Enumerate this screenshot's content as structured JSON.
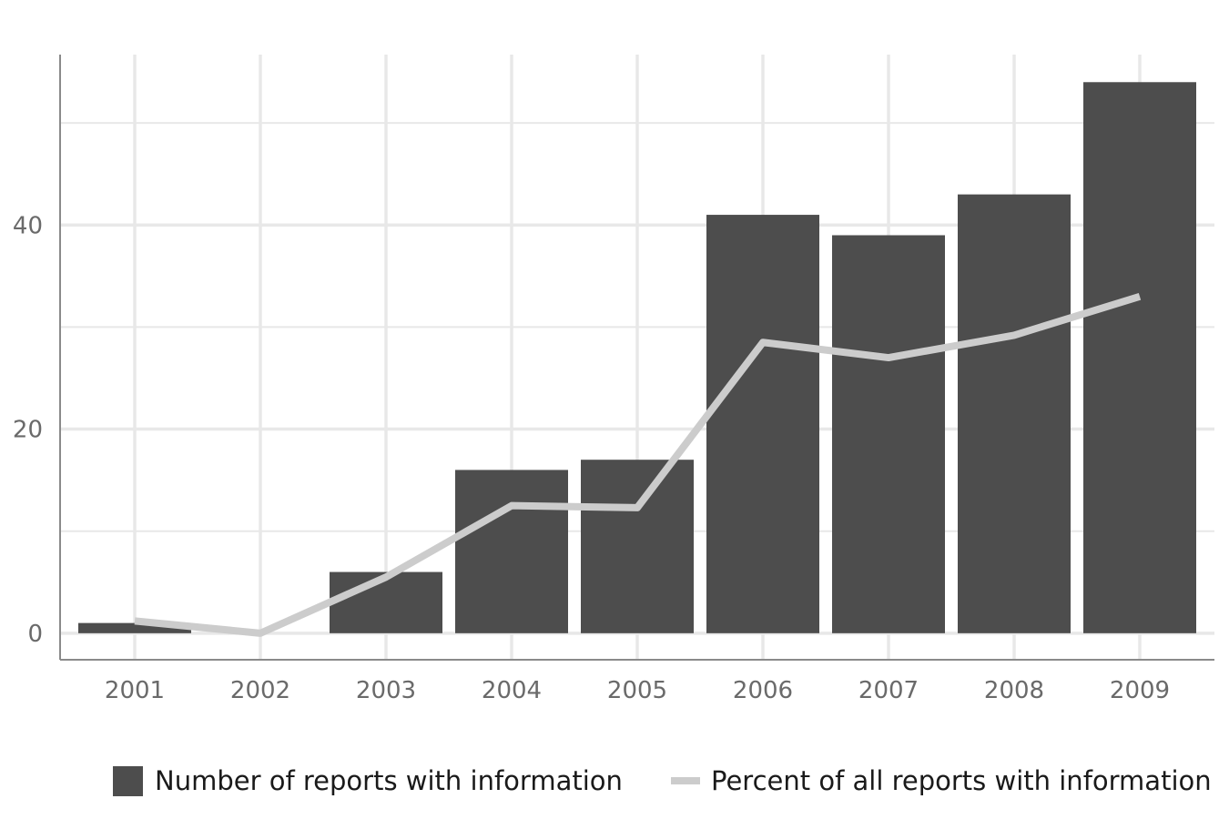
{
  "chart_data": {
    "type": "bar",
    "categories": [
      "2001",
      "2002",
      "2003",
      "2004",
      "2005",
      "2006",
      "2007",
      "2008",
      "2009"
    ],
    "series": [
      {
        "name": "Number of reports with information",
        "type": "bar",
        "values": [
          1,
          0,
          6,
          16,
          17,
          41,
          39,
          43,
          54
        ]
      },
      {
        "name": "Percent of all reports with information",
        "type": "line",
        "values": [
          1.2,
          0,
          5.5,
          12.5,
          12.3,
          28.5,
          27,
          29.2,
          33
        ]
      }
    ],
    "y_ticks": [
      "0",
      "20",
      "40"
    ],
    "ylim": [
      -2.6,
      56.7
    ],
    "grid": true,
    "legend_position": "bottom",
    "colors": {
      "bar": "#4d4d4d",
      "line": "#cccccc",
      "grid": "#e8e8e8",
      "axis": "#8a8a8a"
    }
  }
}
